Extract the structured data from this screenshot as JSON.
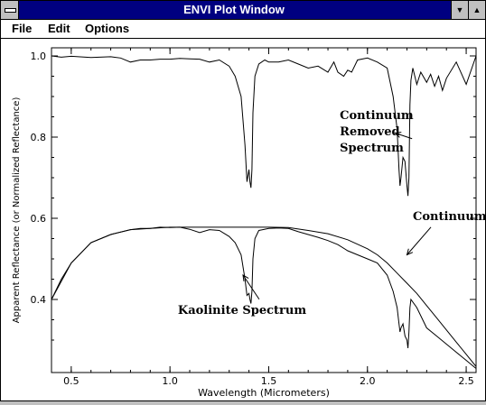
{
  "window": {
    "title": "ENVI Plot Window",
    "minimize_glyph": "▼",
    "maximize_glyph": "▲"
  },
  "menu": [
    "File",
    "Edit",
    "Options"
  ],
  "chart_data": {
    "type": "line",
    "xlabel": "Wavelength (Micrometers)",
    "ylabel": "Apparent Reflectance (or Normalized Reflectance)",
    "xlim": [
      0.4,
      2.55
    ],
    "ylim": [
      0.22,
      1.02
    ],
    "xticks": [
      0.5,
      1.0,
      1.5,
      2.0,
      2.5
    ],
    "xtick_labels": [
      "0.5",
      "1.0",
      "1.5",
      "2.0",
      "2.5"
    ],
    "yticks": [
      0.4,
      0.6,
      0.8,
      1.0
    ],
    "ytick_labels": [
      "0.4",
      "0.6",
      "0.8",
      "1.0"
    ],
    "grid": false,
    "series": [
      {
        "name": "Continuum Removed Spectrum",
        "x": [
          0.4,
          0.45,
          0.5,
          0.6,
          0.7,
          0.75,
          0.8,
          0.85,
          0.9,
          0.95,
          1.0,
          1.05,
          1.1,
          1.15,
          1.2,
          1.25,
          1.3,
          1.33,
          1.36,
          1.38,
          1.39,
          1.4,
          1.405,
          1.41,
          1.415,
          1.42,
          1.43,
          1.45,
          1.48,
          1.5,
          1.55,
          1.6,
          1.65,
          1.7,
          1.75,
          1.8,
          1.83,
          1.85,
          1.88,
          1.9,
          1.92,
          1.95,
          2.0,
          2.05,
          2.1,
          2.13,
          2.15,
          2.16,
          2.165,
          2.17,
          2.18,
          2.19,
          2.2,
          2.205,
          2.21,
          2.215,
          2.22,
          2.23,
          2.25,
          2.27,
          2.3,
          2.32,
          2.34,
          2.36,
          2.38,
          2.4,
          2.45,
          2.5,
          2.55
        ],
        "y": [
          1.0,
          0.997,
          0.999,
          0.996,
          0.998,
          0.995,
          0.985,
          0.99,
          0.99,
          0.992,
          0.992,
          0.994,
          0.993,
          0.992,
          0.985,
          0.99,
          0.975,
          0.95,
          0.9,
          0.78,
          0.69,
          0.72,
          0.69,
          0.675,
          0.72,
          0.86,
          0.95,
          0.98,
          0.99,
          0.985,
          0.985,
          0.99,
          0.98,
          0.97,
          0.975,
          0.96,
          0.985,
          0.96,
          0.95,
          0.965,
          0.96,
          0.99,
          0.995,
          0.985,
          0.97,
          0.9,
          0.82,
          0.72,
          0.68,
          0.7,
          0.75,
          0.74,
          0.68,
          0.655,
          0.7,
          0.88,
          0.94,
          0.97,
          0.93,
          0.96,
          0.935,
          0.955,
          0.925,
          0.95,
          0.915,
          0.945,
          0.985,
          0.93,
          1.0
        ]
      },
      {
        "name": "Kaolinite Spectrum",
        "x": [
          0.4,
          0.45,
          0.5,
          0.6,
          0.7,
          0.8,
          0.85,
          0.9,
          0.95,
          1.0,
          1.05,
          1.1,
          1.15,
          1.2,
          1.25,
          1.3,
          1.33,
          1.36,
          1.38,
          1.39,
          1.4,
          1.405,
          1.41,
          1.415,
          1.42,
          1.43,
          1.45,
          1.5,
          1.55,
          1.6,
          1.65,
          1.7,
          1.75,
          1.8,
          1.85,
          1.9,
          1.95,
          2.0,
          2.05,
          2.1,
          2.13,
          2.15,
          2.16,
          2.165,
          2.17,
          2.18,
          2.19,
          2.2,
          2.205,
          2.21,
          2.215,
          2.22,
          2.25,
          2.3,
          2.35,
          2.4,
          2.45,
          2.5,
          2.55
        ],
        "y": [
          0.4,
          0.45,
          0.49,
          0.54,
          0.56,
          0.572,
          0.575,
          0.575,
          0.578,
          0.577,
          0.578,
          0.573,
          0.565,
          0.572,
          0.57,
          0.555,
          0.54,
          0.51,
          0.45,
          0.41,
          0.415,
          0.4,
          0.39,
          0.42,
          0.5,
          0.55,
          0.57,
          0.575,
          0.576,
          0.575,
          0.567,
          0.56,
          0.553,
          0.545,
          0.535,
          0.52,
          0.51,
          0.5,
          0.49,
          0.46,
          0.42,
          0.38,
          0.34,
          0.32,
          0.33,
          0.34,
          0.31,
          0.3,
          0.28,
          0.32,
          0.38,
          0.4,
          0.38,
          0.33,
          0.31,
          0.29,
          0.27,
          0.25,
          0.23
        ]
      },
      {
        "name": "Continuum",
        "x": [
          0.4,
          0.5,
          0.6,
          0.7,
          0.8,
          0.9,
          1.0,
          1.1,
          1.2,
          1.3,
          1.4,
          1.5,
          1.6,
          1.7,
          1.8,
          1.9,
          2.0,
          2.05,
          2.1,
          2.15,
          2.2,
          2.25,
          2.3,
          2.35,
          2.4,
          2.45,
          2.5,
          2.55
        ],
        "y": [
          0.4,
          0.49,
          0.54,
          0.56,
          0.572,
          0.575,
          0.578,
          0.578,
          0.578,
          0.578,
          0.578,
          0.578,
          0.577,
          0.57,
          0.562,
          0.547,
          0.525,
          0.51,
          0.49,
          0.465,
          0.44,
          0.415,
          0.385,
          0.355,
          0.325,
          0.295,
          0.265,
          0.235
        ]
      }
    ],
    "annotations": [
      {
        "text": [
          "Continuum",
          "Removed",
          "Spectrum"
        ],
        "x": 1.86,
        "y": 0.845,
        "arrow_to": [
          2.14,
          0.81
        ]
      },
      {
        "text": [
          "Continuum"
        ],
        "x": 2.23,
        "y": 0.596,
        "arrow_to": [
          2.2,
          0.51
        ]
      },
      {
        "text": [
          "Kaolinite Spectrum"
        ],
        "x": 1.04,
        "y": 0.365,
        "arrow_to": [
          1.37,
          0.46
        ]
      }
    ]
  }
}
